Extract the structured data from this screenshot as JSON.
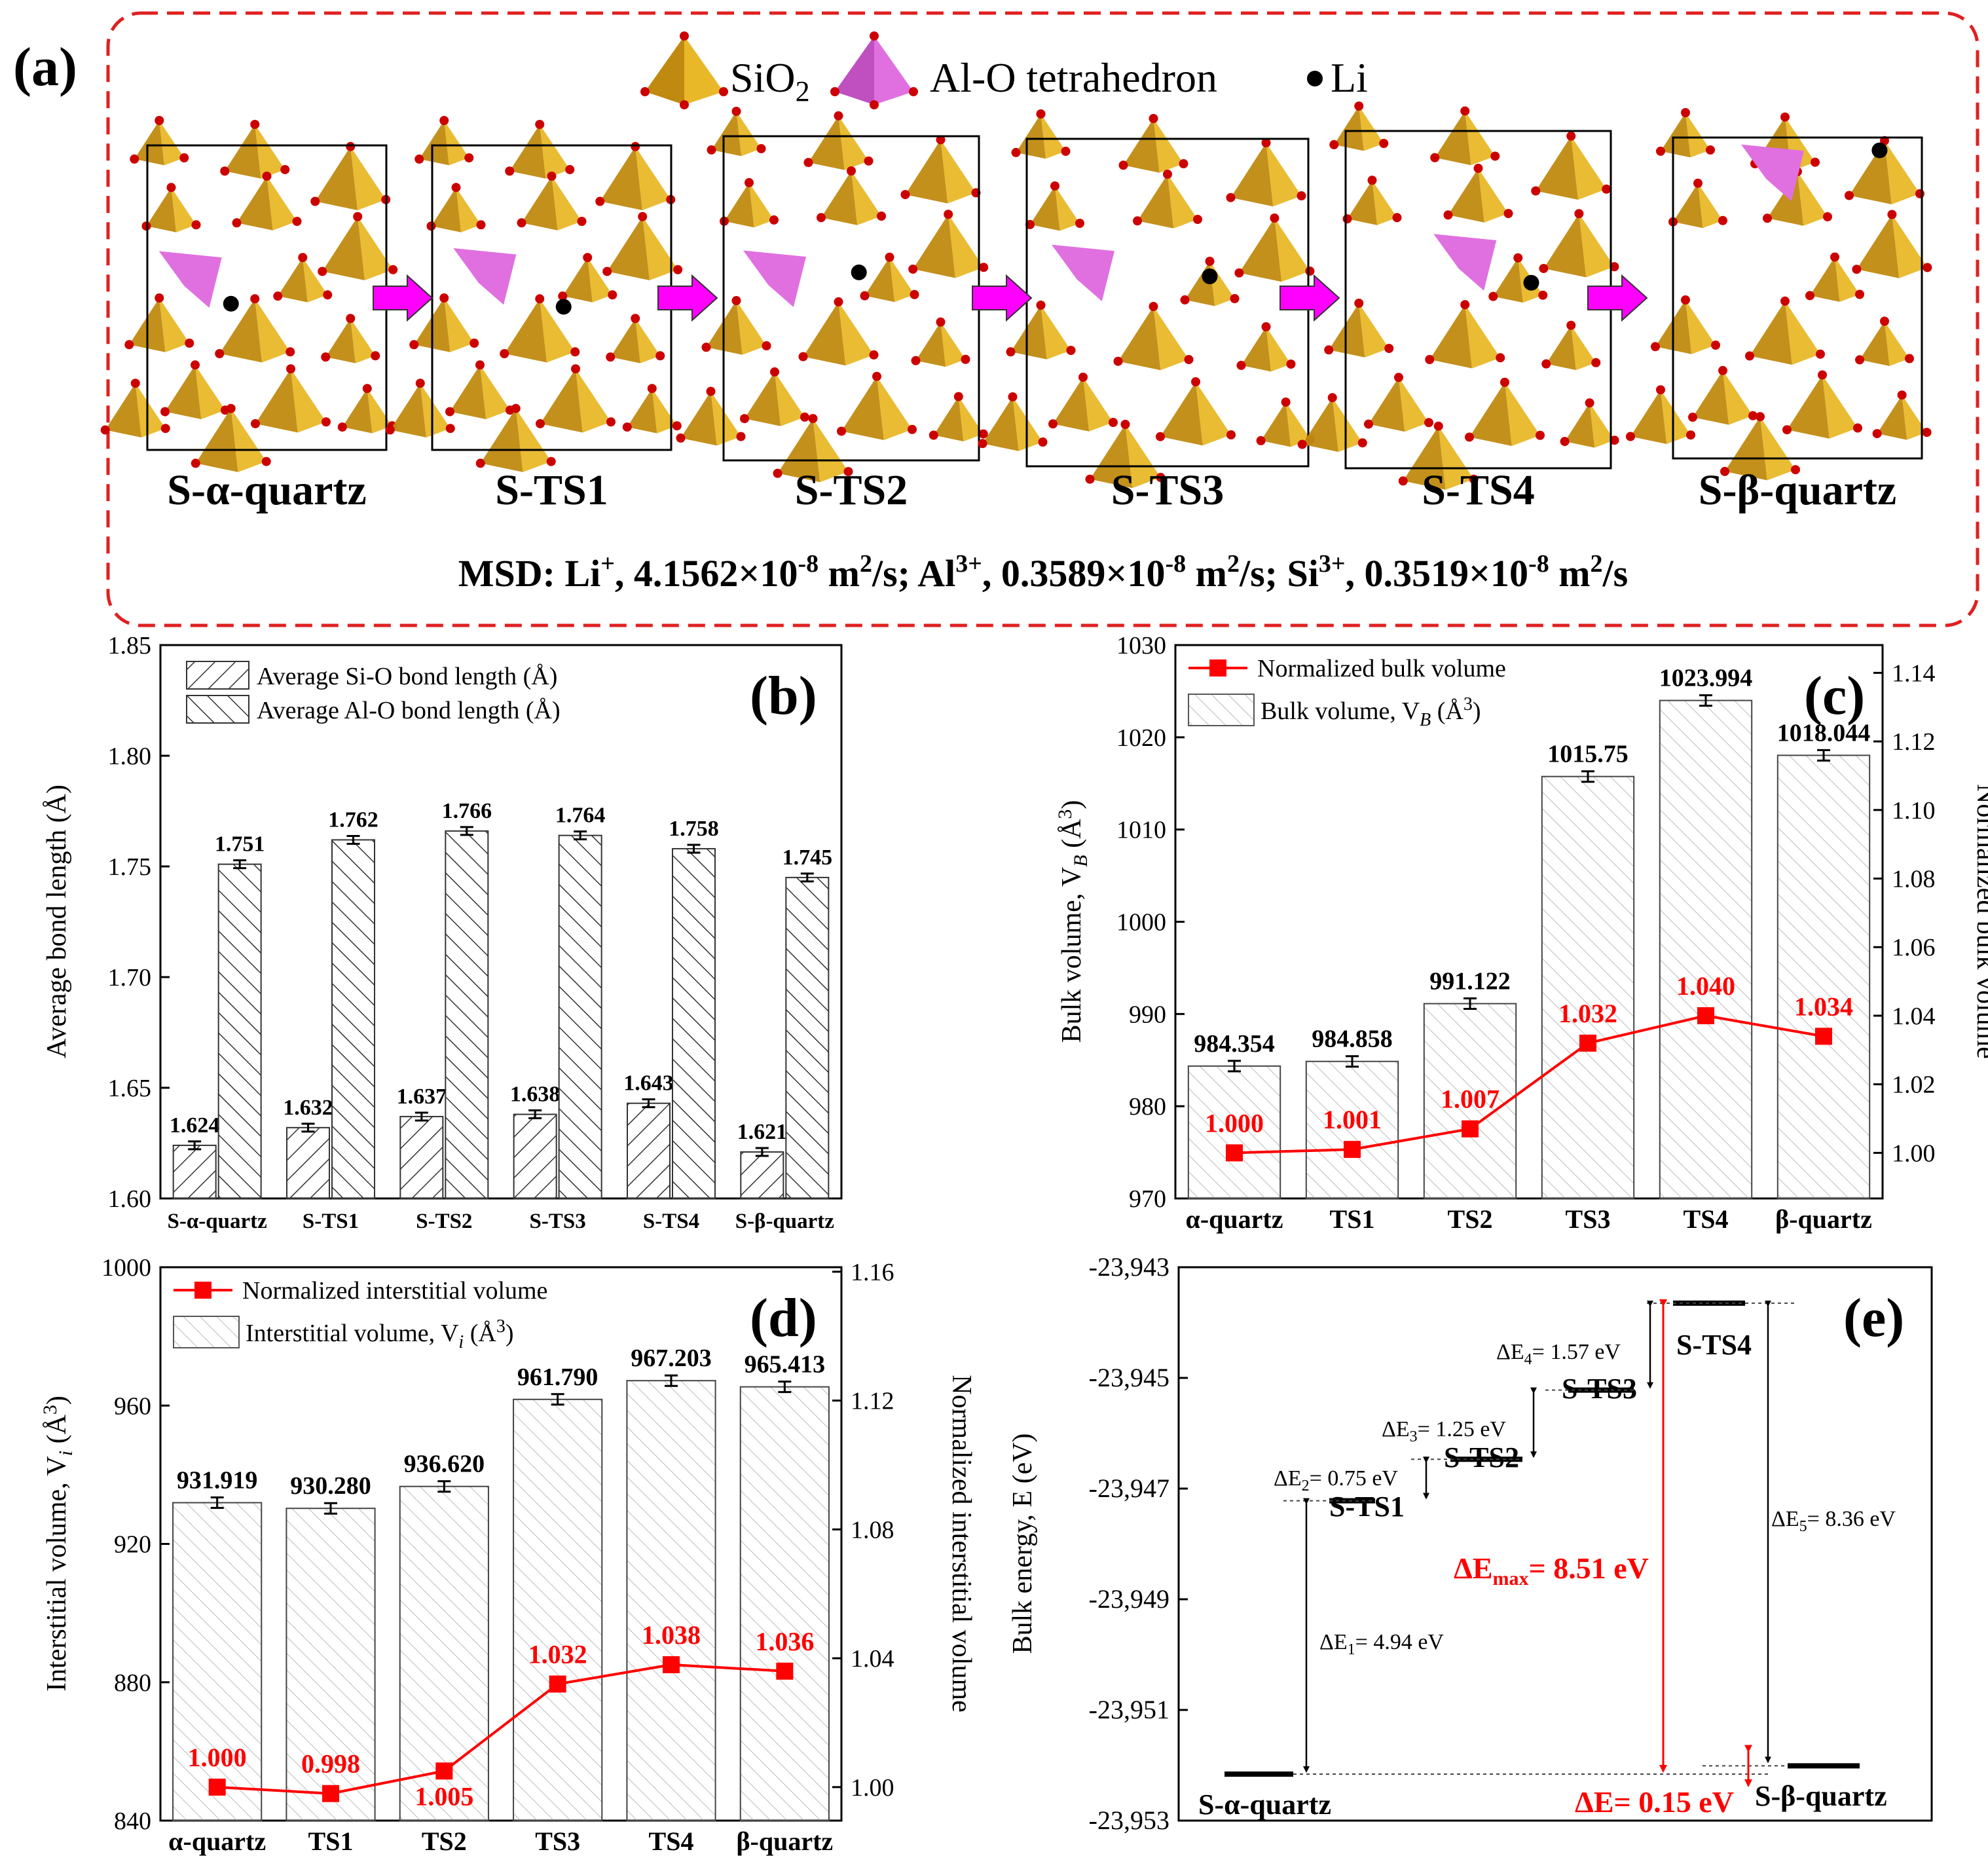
{
  "colors": {
    "tetra": "#e8b828",
    "tetra_dark": "#c08a10",
    "al": "#e070e0",
    "arrow": "#ff00ff",
    "red": "#ff0000",
    "frame": "#e02020"
  },
  "panel_a": {
    "label": "(a)",
    "legend": [
      {
        "name": "SiO",
        "sub": "2",
        "icon": "sio2-tetrahedron-icon"
      },
      {
        "name": "Al-O tetrahedron",
        "icon": "alo-tetrahedron-icon"
      },
      {
        "name": "Li",
        "icon": "li-atom-icon"
      }
    ],
    "structures": [
      "S-α-quartz",
      "S-TS1",
      "S-TS2",
      "S-TS3",
      "S-TS4",
      "S-β-quartz"
    ],
    "msd": {
      "prefix": "MSD: Li",
      "li_sup": "+",
      "li_val": ", 4.1562×10",
      "exp": "-8",
      "unit": " m",
      "unit_sup": "2",
      "per": "/s; ",
      "al": "Al",
      "al_sup": "3+",
      "al_val": ", 0.3589×10",
      "si": "Si",
      "si_sup": "3+",
      "si_val": ", 0.3519×10",
      "end": "/s"
    }
  },
  "chart_data": [
    {
      "id": "b",
      "type": "bar",
      "label": "(b)",
      "ylabel": "Average bond  length (Å)",
      "ylim": [
        1.6,
        1.85
      ],
      "yticks": [
        "1.60",
        "1.65",
        "1.70",
        "1.75",
        "1.80",
        "1.85"
      ],
      "categories": [
        "S-α-quartz",
        "S-TS1",
        "S-TS2",
        "S-TS3",
        "S-TS4",
        "S-β-quartz"
      ],
      "series": [
        {
          "name": "Average Si-O bond length  (Å)",
          "values": [
            1.624,
            1.632,
            1.637,
            1.638,
            1.643,
            1.621
          ],
          "labels": [
            "1.624",
            "1.632",
            "1.637",
            "1.638",
            "1.643",
            "1.621"
          ]
        },
        {
          "name": "Average Al-O bond length  (Å)",
          "values": [
            1.751,
            1.762,
            1.766,
            1.764,
            1.758,
            1.745
          ],
          "labels": [
            "1.751",
            "1.762",
            "1.766",
            "1.764",
            "1.758",
            "1.745"
          ]
        }
      ]
    },
    {
      "id": "c",
      "type": "bar",
      "label": "(c)",
      "ylabel": "Bulk volume, V",
      "ylabel_sub": "B",
      "ylabel_tail": " (Å",
      "ylabel_sup": "3",
      "ylabel_end": ")",
      "y2label": "Normalized bulk volume",
      "ylim": [
        970,
        1030
      ],
      "yticks": [
        "970",
        "980",
        "990",
        "1000",
        "1010",
        "1020",
        "1030"
      ],
      "y2lim": [
        0.9867,
        1.1481
      ],
      "y2ticks": [
        "1.00",
        "1.02",
        "1.04",
        "1.06",
        "1.08",
        "1.10",
        "1.12",
        "1.14"
      ],
      "categories": [
        "α-quartz",
        "TS1",
        "TS2",
        "TS3",
        "TS4",
        "β-quartz"
      ],
      "bars": {
        "name": "Bulk volume, V",
        "name_sub": "B",
        "name_tail": " (Å",
        "name_sup": "3",
        "name_end": ")",
        "values": [
          984.354,
          984.858,
          991.122,
          1015.75,
          1023.994,
          1018.044
        ],
        "labels": [
          "984.354",
          "984.858",
          "991.122",
          "1015.75",
          "1023.994",
          "1018.044"
        ]
      },
      "line": {
        "name": "Normalized bulk volume",
        "values": [
          1.0,
          1.001,
          1.007,
          1.032,
          1.04,
          1.034
        ],
        "labels": [
          "1.000",
          "1.001",
          "1.007",
          "1.032",
          "1.040",
          "1.034"
        ]
      }
    },
    {
      "id": "d",
      "type": "bar",
      "label": "(d)",
      "ylabel": "Interstitial volume, V",
      "ylabel_sub": "i",
      "ylabel_tail": " (Å",
      "ylabel_sup": "3",
      "ylabel_end": ")",
      "y2label": "Normalized interstitial volume",
      "ylim": [
        840,
        1000
      ],
      "yticks": [
        "840",
        "880",
        "920",
        "960",
        "1000"
      ],
      "y2lim": [
        0.9896,
        1.1614
      ],
      "y2ticks": [
        "1.00",
        "1.04",
        "1.08",
        "1.12",
        "1.16"
      ],
      "categories": [
        "α-quartz",
        "TS1",
        "TS2",
        "TS3",
        "TS4",
        "β-quartz"
      ],
      "bars": {
        "name": "Interstitial volume, V",
        "name_sub": "i",
        "name_tail": " (Å",
        "name_sup": "3",
        "name_end": ")",
        "values": [
          931.919,
          930.28,
          936.62,
          961.79,
          967.203,
          965.413
        ],
        "labels": [
          "931.919",
          "930.280",
          "936.620",
          "961.790",
          "967.203",
          "965.413"
        ]
      },
      "line": {
        "name": "Normalized interstitial volume",
        "values": [
          1.0,
          0.998,
          1.005,
          1.032,
          1.038,
          1.036
        ],
        "labels": [
          "1.000",
          "0.998",
          "1.005",
          "1.032",
          "1.038",
          "1.036"
        ]
      }
    },
    {
      "id": "e",
      "type": "energy-diagram",
      "label": "(e)",
      "ylabel": "Bulk energy, E (eV)",
      "ylim": [
        -23953,
        -23943
      ],
      "yticks": [
        "-23,943",
        "-23,945",
        "-23,947",
        "-23,949",
        "-23,951",
        "-23,953"
      ],
      "levels": [
        {
          "name": "S-α-quartz",
          "energy": -23952.16
        },
        {
          "name": "S-TS1",
          "energy": -23947.22
        },
        {
          "name": "S-TS2",
          "energy": -23946.47
        },
        {
          "name": "S-TS3",
          "energy": -23945.22
        },
        {
          "name": "S-TS4",
          "energy": -23943.65
        },
        {
          "name": "S-β-quartz",
          "energy": -23952.01
        }
      ],
      "deltas": [
        {
          "sym": "ΔE",
          "sub": "1",
          "text": "= 4.94 eV"
        },
        {
          "sym": "ΔE",
          "sub": "2",
          "text": "= 0.75 eV"
        },
        {
          "sym": "ΔE",
          "sub": "3",
          "text": "= 1.25 eV"
        },
        {
          "sym": "ΔE",
          "sub": "4",
          "text": "= 1.57 eV"
        },
        {
          "sym": "ΔE",
          "sub": "5",
          "text": "= 8.36 eV"
        }
      ],
      "emax": {
        "sym": "ΔE",
        "sub": "max",
        "text": "= 8.51 eV"
      },
      "ediff": {
        "sym": "ΔE",
        "text": "= 0.15 eV"
      }
    }
  ]
}
